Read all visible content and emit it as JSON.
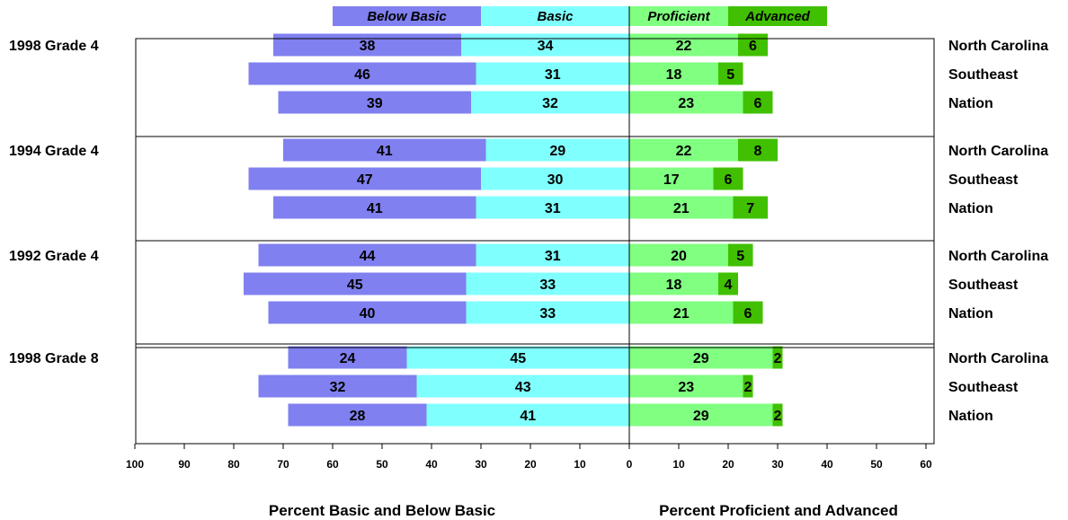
{
  "chart_data": {
    "type": "bar",
    "stacked": "diverging",
    "legend": {
      "position": "top",
      "items": [
        {
          "label": "Below Basic",
          "color": "#8080f0"
        },
        {
          "label": "Basic",
          "color": "#80ffff"
        },
        {
          "label": "Proficient",
          "color": "#80ff80"
        },
        {
          "label": "Advanced",
          "color": "#40c000"
        }
      ]
    },
    "xlabel_left": "Percent Basic and Below Basic",
    "xlabel_right": "Percent Proficient and Advanced",
    "xlim": [
      -100,
      60
    ],
    "ticks": [
      {
        "v": -100,
        "label": "100"
      },
      {
        "v": -90,
        "label": "90"
      },
      {
        "v": -80,
        "label": "80"
      },
      {
        "v": -70,
        "label": "70"
      },
      {
        "v": -60,
        "label": "60"
      },
      {
        "v": -50,
        "label": "50"
      },
      {
        "v": -40,
        "label": "40"
      },
      {
        "v": -30,
        "label": "30"
      },
      {
        "v": -20,
        "label": "20"
      },
      {
        "v": -10,
        "label": "10"
      },
      {
        "v": 0,
        "label": "0"
      },
      {
        "v": 10,
        "label": "10"
      },
      {
        "v": 20,
        "label": "20"
      },
      {
        "v": 30,
        "label": "30"
      },
      {
        "v": 40,
        "label": "40"
      },
      {
        "v": 50,
        "label": "50"
      },
      {
        "v": 60,
        "label": "60"
      }
    ],
    "groups": [
      {
        "label": "1998 Grade 4",
        "rows": [
          {
            "label": "North Carolina",
            "below_basic": 38,
            "basic": 34,
            "proficient": 22,
            "advanced": 6
          },
          {
            "label": "Southeast",
            "below_basic": 46,
            "basic": 31,
            "proficient": 18,
            "advanced": 5
          },
          {
            "label": "Nation",
            "below_basic": 39,
            "basic": 32,
            "proficient": 23,
            "advanced": 6
          }
        ]
      },
      {
        "label": "1994 Grade 4",
        "rows": [
          {
            "label": "North Carolina",
            "below_basic": 41,
            "basic": 29,
            "proficient": 22,
            "advanced": 8
          },
          {
            "label": "Southeast",
            "below_basic": 47,
            "basic": 30,
            "proficient": 17,
            "advanced": 6
          },
          {
            "label": "Nation",
            "below_basic": 41,
            "basic": 31,
            "proficient": 21,
            "advanced": 7
          }
        ]
      },
      {
        "label": "1992 Grade 4",
        "rows": [
          {
            "label": "North Carolina",
            "below_basic": 44,
            "basic": 31,
            "proficient": 20,
            "advanced": 5
          },
          {
            "label": "Southeast",
            "below_basic": 45,
            "basic": 33,
            "proficient": 18,
            "advanced": 4
          },
          {
            "label": "Nation",
            "below_basic": 40,
            "basic": 33,
            "proficient": 21,
            "advanced": 6
          }
        ]
      },
      {
        "label": "1998 Grade 8",
        "rows": [
          {
            "label": "North Carolina",
            "below_basic": 24,
            "basic": 45,
            "proficient": 29,
            "advanced": 2
          },
          {
            "label": "Southeast",
            "below_basic": 32,
            "basic": 43,
            "proficient": 23,
            "advanced": 2
          },
          {
            "label": "Nation",
            "below_basic": 28,
            "basic": 41,
            "proficient": 29,
            "advanced": 2
          }
        ]
      }
    ]
  }
}
